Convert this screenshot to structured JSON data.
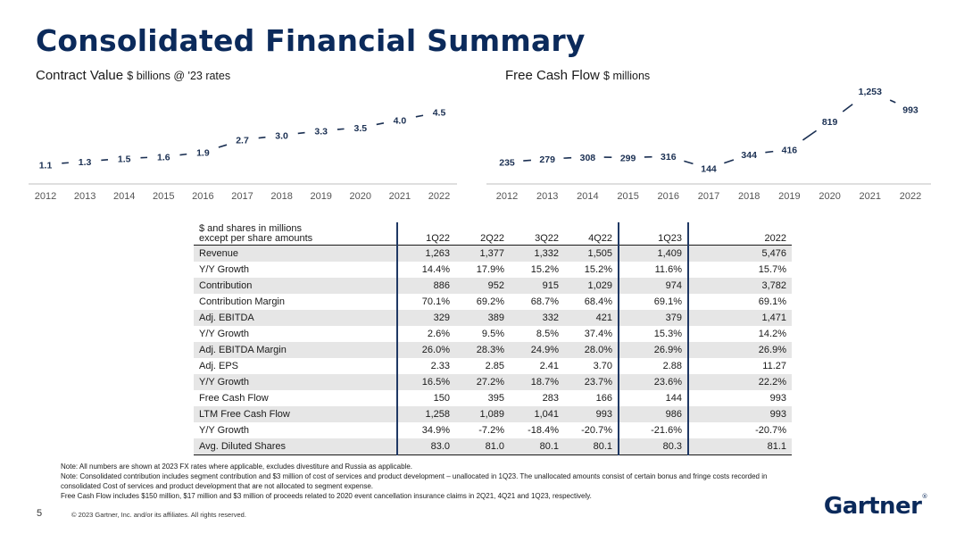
{
  "page": {
    "title": "Consolidated Financial Summary",
    "page_number": "5",
    "copyright": "© 2023 Gartner, Inc. and/or its affiliates. All rights reserved.",
    "logo_text": "Gartner",
    "logo_mark": "®"
  },
  "colors": {
    "title": "#0b2a5b",
    "line": "#1a2f52",
    "row_shade": "#e6e6e6",
    "column_rule": "#1f3864"
  },
  "chart_data": [
    {
      "type": "line",
      "title": "Contract Value",
      "unit": "$ billions @ '23 rates",
      "x": [
        "2012",
        "2013",
        "2014",
        "2015",
        "2016",
        "2017",
        "2018",
        "2019",
        "2020",
        "2021",
        "2022"
      ],
      "values": [
        1.1,
        1.3,
        1.5,
        1.6,
        1.9,
        2.7,
        3.0,
        3.3,
        3.5,
        4.0,
        4.5
      ],
      "labels": [
        "1.1",
        "1.3",
        "1.5",
        "1.6",
        "1.9",
        "2.7",
        "3.0",
        "3.3",
        "3.5",
        "4.0",
        "4.5"
      ],
      "ylim": [
        1.0,
        4.6
      ],
      "grid": false,
      "legend": "none"
    },
    {
      "type": "line",
      "title": "Free Cash Flow",
      "unit": "$ millions",
      "x": [
        "2012",
        "2013",
        "2014",
        "2015",
        "2016",
        "2017",
        "2018",
        "2019",
        "2020",
        "2021",
        "2022"
      ],
      "values": [
        235,
        279,
        308,
        299,
        316,
        144,
        344,
        416,
        819,
        1253,
        993
      ],
      "labels": [
        "235",
        "279",
        "308",
        "299",
        "316",
        "144",
        "344",
        "416",
        "819",
        "1,253",
        "993"
      ],
      "ylim": [
        100,
        1280
      ],
      "grid": false,
      "legend": "none"
    }
  ],
  "table": {
    "header_line1": "$ and shares in millions",
    "header_line2": "except per share amounts",
    "columns": [
      "1Q22",
      "2Q22",
      "3Q22",
      "4Q22",
      "1Q23",
      "2022"
    ],
    "rows": [
      {
        "label": "Revenue",
        "values": [
          "1,263",
          "1,377",
          "1,332",
          "1,505",
          "1,409",
          "5,476"
        ]
      },
      {
        "label": "Y/Y Growth",
        "values": [
          "14.4%",
          "17.9%",
          "15.2%",
          "15.2%",
          "11.6%",
          "15.7%"
        ]
      },
      {
        "label": "Contribution",
        "values": [
          "886",
          "952",
          "915",
          "1,029",
          "974",
          "3,782"
        ]
      },
      {
        "label": "Contribution Margin",
        "values": [
          "70.1%",
          "69.2%",
          "68.7%",
          "68.4%",
          "69.1%",
          "69.1%"
        ]
      },
      {
        "label": "Adj. EBITDA",
        "values": [
          "329",
          "389",
          "332",
          "421",
          "379",
          "1,471"
        ]
      },
      {
        "label": "Y/Y Growth",
        "values": [
          "2.6%",
          "9.5%",
          "8.5%",
          "37.4%",
          "15.3%",
          "14.2%"
        ]
      },
      {
        "label": "Adj. EBITDA Margin",
        "values": [
          "26.0%",
          "28.3%",
          "24.9%",
          "28.0%",
          "26.9%",
          "26.9%"
        ]
      },
      {
        "label": "Adj. EPS",
        "values": [
          "2.33",
          "2.85",
          "2.41",
          "3.70",
          "2.88",
          "11.27"
        ]
      },
      {
        "label": "Y/Y Growth",
        "values": [
          "16.5%",
          "27.2%",
          "18.7%",
          "23.7%",
          "23.6%",
          "22.2%"
        ]
      },
      {
        "label": "Free Cash Flow",
        "values": [
          "150",
          "395",
          "283",
          "166",
          "144",
          "993"
        ]
      },
      {
        "label": "LTM Free Cash Flow",
        "values": [
          "1,258",
          "1,089",
          "1,041",
          "993",
          "986",
          "993"
        ]
      },
      {
        "label": "Y/Y Growth",
        "values": [
          "34.9%",
          "-7.2%",
          "-18.4%",
          "-20.7%",
          "-21.6%",
          "-20.7%"
        ]
      },
      {
        "label": "Avg. Diluted Shares",
        "values": [
          "83.0",
          "81.0",
          "80.1",
          "80.1",
          "80.3",
          "81.1"
        ]
      }
    ]
  },
  "notes": [
    "Note: All numbers are shown at 2023 FX rates where applicable, excludes divestiture and Russia as applicable.",
    "Note: Consolidated contribution includes segment contribution and $3 million of cost of services and product development – unallocated in 1Q23. The unallocated amounts consist of certain bonus and fringe costs recorded in",
    "consolidated Cost of services and product development that are not allocated to segment expense.",
    "Free Cash Flow includes $150 million, $17 million and $3 million of proceeds related to 2020 event cancellation insurance claims in 2Q21, 4Q21 and 1Q23, respectively."
  ]
}
